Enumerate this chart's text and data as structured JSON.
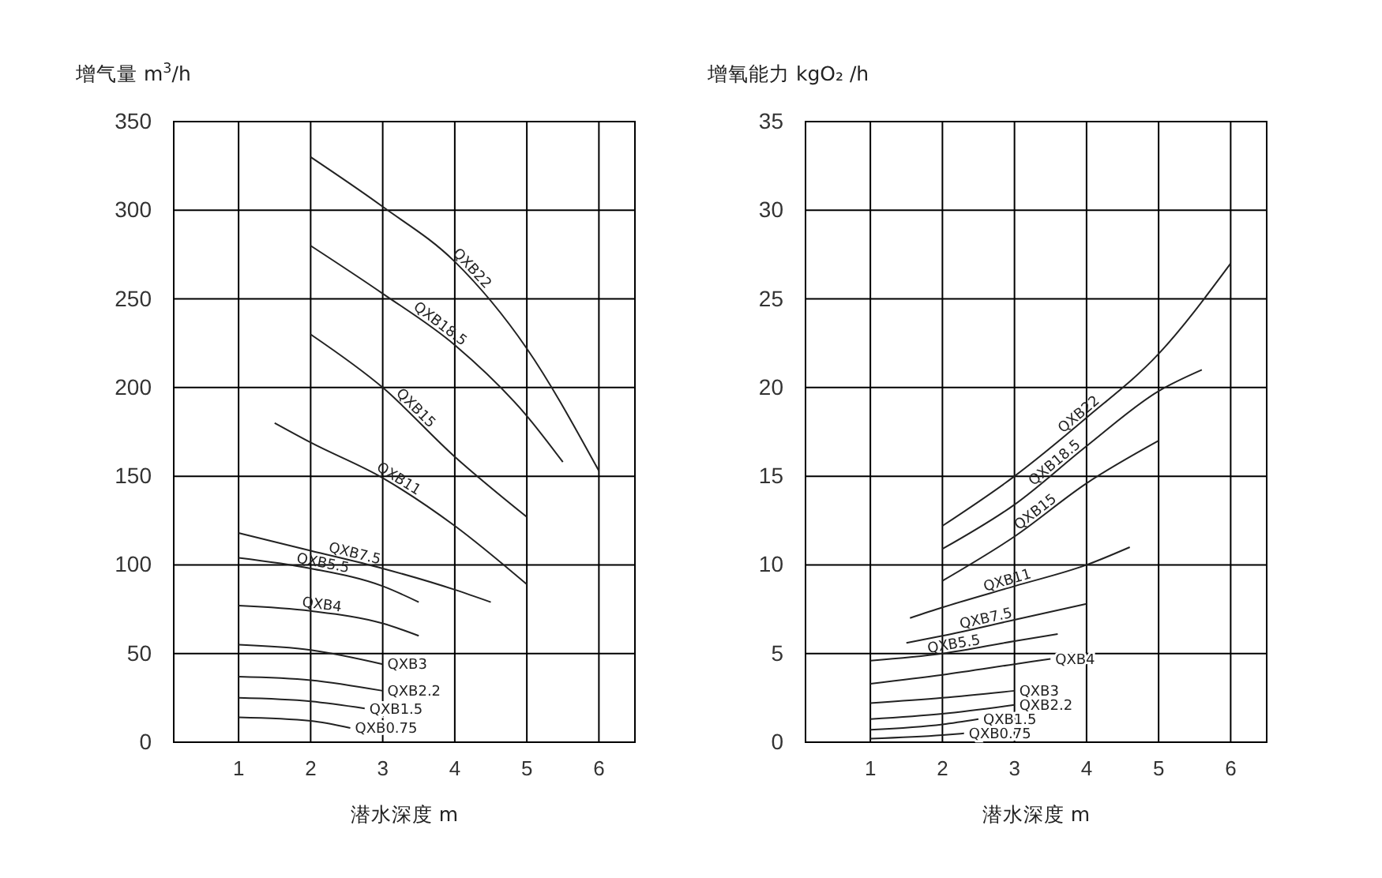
{
  "chart_data": [
    {
      "type": "line",
      "ylabel": "增气量 m$^{3}$/h",
      "xlabel": "潜水深度 m",
      "xlim": [
        0.1,
        6.5
      ],
      "ylim": [
        0,
        350
      ],
      "xticks": [
        1,
        2,
        3,
        4,
        5,
        6
      ],
      "yticks": [
        0,
        50,
        100,
        150,
        200,
        250,
        300,
        350
      ],
      "grid": true,
      "marker": "none",
      "line_style": "solid",
      "series": [
        {
          "name": "QXB22",
          "color": "#222222",
          "x": [
            2,
            3,
            4,
            5,
            6
          ],
          "values": [
            330,
            302,
            271,
            222,
            153
          ]
        },
        {
          "name": "QXB18.5",
          "color": "#222222",
          "x": [
            2,
            3,
            4,
            5,
            5.5
          ],
          "values": [
            280,
            253,
            224,
            184,
            158
          ]
        },
        {
          "name": "QXB15",
          "color": "#222222",
          "x": [
            2,
            3,
            4,
            5
          ],
          "values": [
            230,
            200,
            161,
            127
          ]
        },
        {
          "name": "QXB11",
          "color": "#222222",
          "x": [
            1.5,
            2,
            3,
            4,
            5
          ],
          "values": [
            180,
            169,
            149,
            122,
            89
          ]
        },
        {
          "name": "QXB7.5",
          "color": "#222222",
          "x": [
            1,
            2,
            3,
            4,
            4.5
          ],
          "values": [
            118,
            108,
            98,
            86,
            79
          ]
        },
        {
          "name": "QXB5.5",
          "color": "#222222",
          "x": [
            1,
            2,
            3,
            3.5
          ],
          "values": [
            104,
            98,
            88,
            79
          ]
        },
        {
          "name": "QXB4",
          "color": "#222222",
          "x": [
            1,
            2,
            3,
            3.5
          ],
          "values": [
            77,
            74,
            67,
            60
          ]
        },
        {
          "name": "QXB3",
          "color": "#222222",
          "x": [
            1,
            2,
            3
          ],
          "values": [
            55,
            52,
            44
          ]
        },
        {
          "name": "QXB2.2",
          "color": "#222222",
          "x": [
            1,
            2,
            3
          ],
          "values": [
            37,
            35,
            29
          ]
        },
        {
          "name": "QXB1.5",
          "color": "#222222",
          "x": [
            1,
            2,
            2.75
          ],
          "values": [
            25,
            23,
            19
          ]
        },
        {
          "name": "QXB0.75",
          "color": "#222222",
          "x": [
            1,
            2,
            2.55
          ],
          "values": [
            14,
            12,
            8
          ]
        }
      ]
    },
    {
      "type": "line",
      "ylabel": "增氧能力 kgO₂ /h",
      "xlabel": "潜水深度 m",
      "xlim": [
        0.1,
        6.5
      ],
      "ylim": [
        0,
        35
      ],
      "xticks": [
        1,
        2,
        3,
        4,
        5,
        6
      ],
      "yticks": [
        0,
        5,
        10,
        15,
        20,
        25,
        30,
        35
      ],
      "grid": true,
      "marker": "none",
      "line_style": "solid",
      "series": [
        {
          "name": "QXB22",
          "color": "#222222",
          "x": [
            2,
            3,
            4,
            5,
            6
          ],
          "values": [
            12.2,
            15,
            18.3,
            21.9,
            27
          ]
        },
        {
          "name": "QXB18.5",
          "color": "#222222",
          "x": [
            2,
            3,
            4,
            5,
            5.6
          ],
          "values": [
            10.9,
            13.4,
            16.7,
            19.8,
            21
          ]
        },
        {
          "name": "QXB15",
          "color": "#222222",
          "x": [
            2,
            3,
            4,
            5
          ],
          "values": [
            9.1,
            11.6,
            14.6,
            17
          ]
        },
        {
          "name": "QXB11",
          "color": "#222222",
          "x": [
            1.55,
            2,
            3,
            4,
            4.6
          ],
          "values": [
            7,
            7.6,
            8.8,
            10,
            11
          ]
        },
        {
          "name": "QXB7.5",
          "color": "#222222",
          "x": [
            1.5,
            2,
            3,
            4
          ],
          "values": [
            5.6,
            6,
            6.9,
            7.8
          ]
        },
        {
          "name": "QXB5.5",
          "color": "#222222",
          "x": [
            1,
            2,
            3,
            3.6
          ],
          "values": [
            4.6,
            5,
            5.7,
            6.1
          ]
        },
        {
          "name": "QXB4",
          "color": "#222222",
          "x": [
            1,
            2,
            3,
            3.5
          ],
          "values": [
            3.3,
            3.8,
            4.4,
            4.7
          ]
        },
        {
          "name": "QXB3",
          "color": "#222222",
          "x": [
            1,
            2,
            3
          ],
          "values": [
            2.2,
            2.5,
            2.9
          ]
        },
        {
          "name": "QXB2.2",
          "color": "#222222",
          "x": [
            1,
            2,
            3
          ],
          "values": [
            1.3,
            1.6,
            2.1
          ]
        },
        {
          "name": "QXB1.5",
          "color": "#222222",
          "x": [
            1,
            2,
            2.5
          ],
          "values": [
            0.7,
            1,
            1.3
          ]
        },
        {
          "name": "QXB0.75",
          "color": "#222222",
          "x": [
            1,
            2,
            2.3
          ],
          "values": [
            0.2,
            0.4,
            0.5
          ]
        }
      ]
    }
  ]
}
